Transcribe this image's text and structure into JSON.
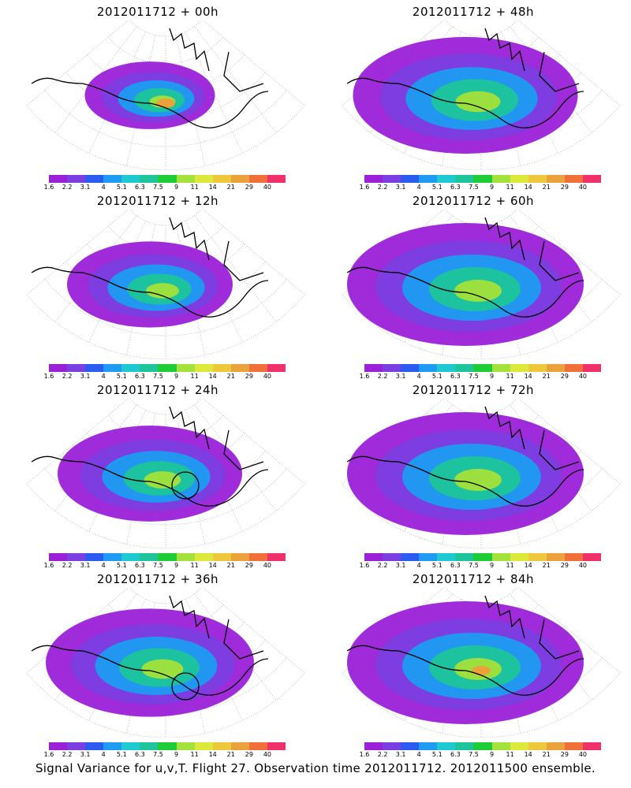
{
  "panels": [
    {
      "title": "2012011712 + 00h",
      "spread": 0.55,
      "peak": 3,
      "circle": false
    },
    {
      "title": "2012011712 + 12h",
      "spread": 0.7,
      "peak": 2,
      "circle": false
    },
    {
      "title": "2012011712 + 24h",
      "spread": 0.78,
      "peak": 2,
      "circle": true
    },
    {
      "title": "2012011712 + 36h",
      "spread": 0.88,
      "peak": 2,
      "circle": true
    },
    {
      "title": "2012011712 + 48h",
      "spread": 0.95,
      "peak": 2,
      "circle": false
    },
    {
      "title": "2012011712 + 60h",
      "spread": 1.0,
      "peak": 2,
      "circle": false
    },
    {
      "title": "2012011712 + 72h",
      "spread": 1.0,
      "peak": 2,
      "circle": false
    },
    {
      "title": "2012011712 + 84h",
      "spread": 1.0,
      "peak": 3,
      "circle": false
    }
  ],
  "colorbar": {
    "colors": [
      "#9b20d8",
      "#7b3ee0",
      "#2b5bf0",
      "#1d9cf2",
      "#20c8d2",
      "#1ec49a",
      "#1ecc38",
      "#a2e23a",
      "#dce83a",
      "#ecc83a",
      "#eca23a",
      "#f0703a",
      "#f0306a"
    ],
    "labels": [
      "1.6",
      "2.2",
      "3.1",
      "4",
      "5.1",
      "6.3",
      "7.5",
      "9",
      "11",
      "14",
      "21",
      "29",
      "40"
    ]
  },
  "footer": "Signal Variance for u,v,T. Flight 27. Observation time 2012011712. 2012011500 ensemble."
}
